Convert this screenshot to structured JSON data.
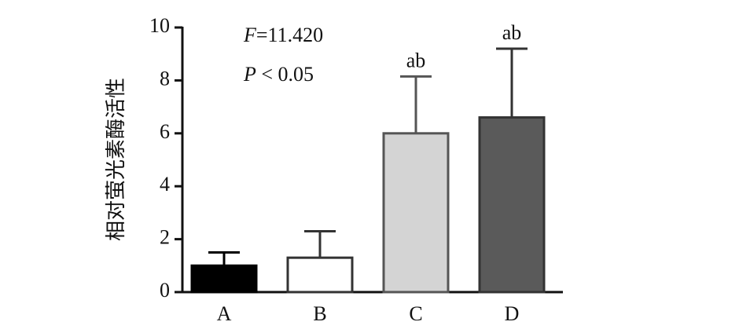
{
  "chart_data": {
    "type": "bar",
    "y_label": "相对萤光素酶活性",
    "categories": [
      "A",
      "B",
      "C",
      "D"
    ],
    "values": [
      1.0,
      1.3,
      6.0,
      6.6
    ],
    "errors": [
      0.5,
      1.0,
      2.15,
      2.6
    ],
    "colors": [
      "#000000",
      "#ffffff",
      "#d4d4d4",
      "#5a5a5a"
    ],
    "edge_colors": [
      "#000000",
      "#333333",
      "#555555",
      "#333333"
    ],
    "significance": [
      null,
      null,
      "ab",
      "ab"
    ],
    "annotations": [
      [
        "F",
        "=11.420"
      ],
      [
        "P",
        " < 0.05"
      ]
    ],
    "ylim": [
      0,
      10
    ],
    "yticks": [
      0,
      2,
      4,
      6,
      8,
      10
    ]
  }
}
